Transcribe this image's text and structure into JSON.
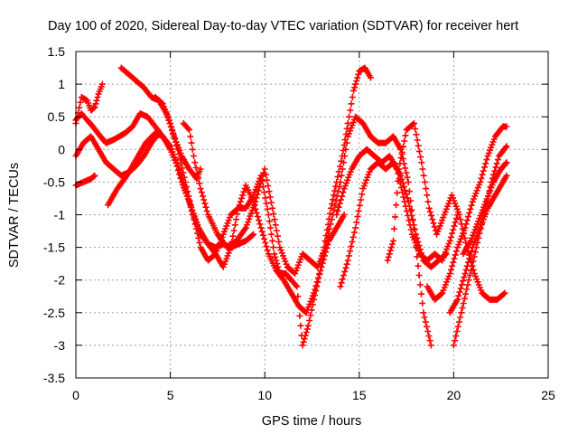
{
  "chart_data": {
    "type": "scatter",
    "title": "Day 100 of 2020, Sidereal Day-to-day VTEC variation (SDTVAR) for receiver hert",
    "xlabel": "GPS time / hours",
    "ylabel": "SDTVAR / TECUs",
    "xlim": [
      0,
      25
    ],
    "ylim": [
      -3.5,
      1.5
    ],
    "xticks": [
      0,
      5,
      10,
      15,
      20,
      25
    ],
    "yticks": [
      1.5,
      1,
      0.5,
      0,
      -0.5,
      -1,
      -1.5,
      -2,
      -2.5,
      -3,
      -3.5
    ],
    "grid": true,
    "legend": "none",
    "marker": "+",
    "color": "#ff0000",
    "series": [
      {
        "name": "track-1",
        "x": [
          0.0,
          0.3,
          0.6,
          0.9,
          1.3,
          1.6,
          2.0,
          2.3,
          2.6,
          3.0,
          3.4,
          3.8,
          4.2,
          4.6,
          5.0,
          5.4,
          5.8,
          6.2,
          6.6,
          7.0,
          7.4,
          7.8,
          8.2,
          8.6,
          9.0,
          9.4
        ],
        "y": [
          0.45,
          0.55,
          0.45,
          0.35,
          0.2,
          0.1,
          0.15,
          0.2,
          0.25,
          0.35,
          0.55,
          0.5,
          0.35,
          0.2,
          0.05,
          -0.25,
          -0.6,
          -1.0,
          -1.3,
          -1.45,
          -1.5,
          -1.45,
          -1.5,
          -1.45,
          -1.4,
          -1.3
        ]
      },
      {
        "name": "track-2",
        "x": [
          0.0,
          0.3,
          0.6,
          0.8,
          1.0,
          1.2,
          1.4
        ],
        "y": [
          0.4,
          0.8,
          0.75,
          0.6,
          0.65,
          0.85,
          1.0
        ]
      },
      {
        "name": "track-3",
        "x": [
          0.0,
          0.4,
          0.8,
          1.2,
          1.6,
          2.0,
          2.4,
          2.8,
          3.2,
          3.6,
          4.0,
          4.4
        ],
        "y": [
          -0.1,
          0.1,
          0.2,
          0.0,
          -0.2,
          -0.3,
          -0.4,
          -0.35,
          -0.25,
          -0.1,
          0.1,
          0.25
        ]
      },
      {
        "name": "track-4",
        "x": [
          0.0,
          0.4,
          0.8,
          1.0
        ],
        "y": [
          -0.55,
          -0.5,
          -0.45,
          -0.4
        ]
      },
      {
        "name": "track-5",
        "x": [
          1.7,
          2.2,
          2.7,
          3.2,
          3.7,
          4.2,
          4.6,
          5.0,
          5.3,
          5.6,
          6.0,
          6.5,
          7.0,
          7.4,
          7.8,
          8.2,
          8.6,
          9.0,
          9.4,
          9.8,
          10.2,
          10.6,
          11.0,
          11.4,
          11.8,
          12.2,
          12.6,
          13.0,
          13.4,
          13.8,
          14.2
        ],
        "y": [
          -0.85,
          -0.6,
          -0.4,
          -0.15,
          0.1,
          0.25,
          0.2,
          0.0,
          -0.2,
          -0.5,
          -0.8,
          -1.2,
          -1.45,
          -1.6,
          -1.8,
          -1.5,
          -0.9,
          -0.55,
          -0.8,
          -1.2,
          -1.6,
          -1.85,
          -2.0,
          -2.2,
          -2.4,
          -2.5,
          -2.2,
          -1.8,
          -1.4,
          -1.2,
          -1.0
        ]
      },
      {
        "name": "track-6",
        "x": [
          2.4,
          2.8,
          3.2,
          3.6,
          4.0,
          4.4,
          4.8,
          5.2,
          5.6,
          6.0,
          6.4,
          6.6
        ],
        "y": [
          1.25,
          1.15,
          1.05,
          0.95,
          0.8,
          0.75,
          0.55,
          0.2,
          -0.1,
          -0.3,
          -0.45,
          -0.3
        ]
      },
      {
        "name": "track-7",
        "x": [
          4.2,
          4.6,
          5.0,
          5.4,
          5.8,
          6.2,
          6.6,
          7.0,
          7.4,
          7.8,
          8.2,
          8.6,
          9.0,
          9.4,
          9.8,
          10.2,
          10.5,
          10.8,
          11.1,
          11.4,
          11.7,
          12.0,
          12.3,
          12.6,
          12.9,
          13.2,
          13.5,
          13.8,
          14.1,
          14.4,
          14.7,
          15.0,
          15.3,
          15.6
        ],
        "y": [
          0.8,
          0.7,
          0.4,
          0.0,
          -0.5,
          -1.0,
          -1.5,
          -1.7,
          -1.6,
          -1.3,
          -1.0,
          -0.9,
          -0.9,
          -0.7,
          -0.4,
          -1.0,
          -1.6,
          -1.9,
          -1.9,
          -2.0,
          -2.1,
          -3.0,
          -2.7,
          -2.3,
          -1.9,
          -1.4,
          -0.9,
          -0.5,
          -0.1,
          0.4,
          0.9,
          1.2,
          1.25,
          1.1
        ]
      },
      {
        "name": "track-8",
        "x": [
          5.7,
          6.0,
          6.3,
          6.6,
          7.0,
          7.5,
          8.0,
          8.5,
          9.0,
          9.5,
          10.0,
          10.4,
          10.8,
          11.2,
          11.6,
          12.0,
          12.4,
          12.8,
          13.2,
          13.6,
          14.0,
          14.4,
          14.8,
          15.2,
          15.6,
          16.0,
          16.4,
          16.8,
          17.2,
          17.6,
          18.0,
          18.4,
          18.8
        ],
        "y": [
          0.4,
          0.3,
          -0.2,
          -0.6,
          -1.0,
          -1.3,
          -1.5,
          -1.4,
          -1.2,
          -0.8,
          -0.3,
          -0.9,
          -1.5,
          -1.8,
          -1.9,
          -1.6,
          -1.7,
          -1.8,
          -1.5,
          -1.0,
          -0.5,
          0.2,
          0.5,
          0.4,
          0.2,
          0.1,
          0.1,
          0.2,
          0.0,
          -0.5,
          -1.5,
          -2.5,
          -3.0
        ]
      },
      {
        "name": "track-9",
        "x": [
          13.8,
          14.2,
          14.6,
          15.0,
          15.4,
          15.8,
          16.2,
          16.6,
          17.0,
          17.4,
          17.8,
          18.2,
          18.6,
          19.0,
          19.4,
          19.8,
          20.2
        ],
        "y": [
          -1.0,
          -0.6,
          -0.3,
          -0.1,
          0.0,
          -0.1,
          -0.2,
          -0.1,
          -0.3,
          -0.8,
          -1.3,
          -1.6,
          -1.7,
          -1.6,
          -1.7,
          -1.4,
          -1.0
        ]
      },
      {
        "name": "track-10",
        "x": [
          14.0,
          14.4,
          14.8,
          15.2,
          15.6,
          16.0,
          16.4,
          16.8,
          17.2,
          17.6,
          18.0,
          18.4,
          18.8,
          19.2,
          19.6
        ],
        "y": [
          -2.1,
          -1.7,
          -1.2,
          -0.6,
          -0.3,
          -0.2,
          -0.3,
          -0.2,
          -0.4,
          -0.8,
          -1.3,
          -1.7,
          -1.8,
          -1.7,
          -1.6
        ]
      },
      {
        "name": "track-11",
        "x": [
          16.5,
          16.8,
          17.1,
          17.5,
          17.9,
          18.3,
          18.7,
          19.1,
          19.5,
          19.9,
          20.3,
          20.7,
          21.1,
          21.5,
          21.9,
          22.3,
          22.7
        ],
        "y": [
          -1.7,
          -1.4,
          -0.3,
          0.3,
          0.4,
          -0.2,
          -0.9,
          -1.3,
          -1.0,
          -0.7,
          -1.0,
          -1.5,
          -1.9,
          -2.2,
          -2.3,
          -2.3,
          -2.2
        ]
      },
      {
        "name": "track-12",
        "x": [
          18.6,
          19.0,
          19.4,
          19.8,
          20.2,
          20.6,
          21.0,
          21.4,
          21.8,
          22.2,
          22.6,
          22.8
        ],
        "y": [
          -2.1,
          -2.3,
          -2.2,
          -1.9,
          -1.5,
          -1.2,
          -0.8,
          -0.5,
          -0.1,
          0.2,
          0.35,
          0.35
        ]
      },
      {
        "name": "track-13",
        "x": [
          19.8,
          20.2,
          20.6,
          21.0,
          21.4,
          21.8,
          22.2,
          22.6,
          22.8
        ],
        "y": [
          -2.5,
          -2.3,
          -1.9,
          -1.5,
          -1.2,
          -0.9,
          -0.7,
          -0.5,
          -0.4
        ]
      },
      {
        "name": "track-14",
        "x": [
          20.0,
          20.4,
          20.8,
          21.2,
          21.6,
          22.0,
          22.4,
          22.8
        ],
        "y": [
          -3.0,
          -2.5,
          -2.0,
          -1.5,
          -1.0,
          -0.5,
          -0.1,
          0.05
        ]
      },
      {
        "name": "track-15",
        "x": [
          20.5,
          20.9,
          21.3,
          21.7,
          22.1,
          22.5,
          22.8
        ],
        "y": [
          -1.6,
          -1.4,
          -1.1,
          -0.8,
          -0.5,
          -0.3,
          -0.2
        ]
      }
    ]
  }
}
